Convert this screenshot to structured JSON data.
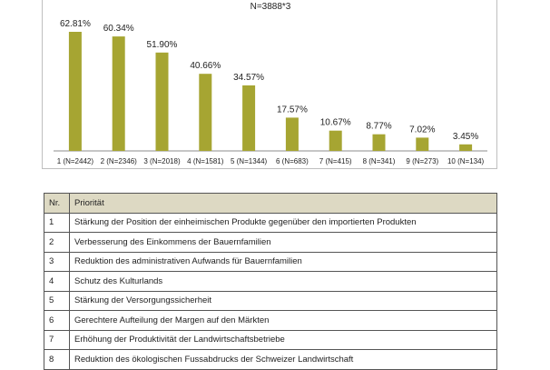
{
  "colors": {
    "bar": "#a6a532",
    "axis": "#8c8c8c",
    "header_bg": "#ddd9c3",
    "title_text": "#222222"
  },
  "chart_data": {
    "type": "bar",
    "title": "",
    "subtitle": "N=3888*3",
    "xlabel": "",
    "ylabel": "",
    "ylim": [
      0,
      70
    ],
    "grid": false,
    "legend": "none",
    "categories": [
      "1 (N=2442)",
      "2 (N=2346)",
      "3 (N=2018)",
      "4 (N=1581)",
      "5 (N=1344)",
      "6 (N=683)",
      "7 (N=415)",
      "8 (N=341)",
      "9 (N=273)",
      "10 (N=134)"
    ],
    "values": [
      62.81,
      60.34,
      51.9,
      40.66,
      34.57,
      17.57,
      10.67,
      8.77,
      7.02,
      3.45
    ],
    "data_labels": [
      "62.81%",
      "60.34%",
      "51.90%",
      "40.66%",
      "34.57%",
      "17.57%",
      "10.67%",
      "8.77%",
      "7.02%",
      "3.45%"
    ]
  },
  "table": {
    "headers": [
      "Nr.",
      "Priorität"
    ],
    "rows": [
      [
        "1",
        "Stärkung der Position der einheimischen Produkte gegenüber den importierten Produkten"
      ],
      [
        "2",
        "Verbesserung des Einkommens der Bauernfamilien"
      ],
      [
        "3",
        "Reduktion des administrativen Aufwands für Bauernfamilien"
      ],
      [
        "4",
        "Schutz des Kulturlands"
      ],
      [
        "5",
        "Stärkung der Versorgungssicherheit"
      ],
      [
        "6",
        "Gerechtere Aufteilung der Margen auf den Märkten"
      ],
      [
        "7",
        "Erhöhung der Produktivität der Landwirtschaftsbetriebe"
      ],
      [
        "8",
        "Reduktion des ökologischen Fussabdrucks der Schweizer Landwirtschaft"
      ]
    ]
  }
}
